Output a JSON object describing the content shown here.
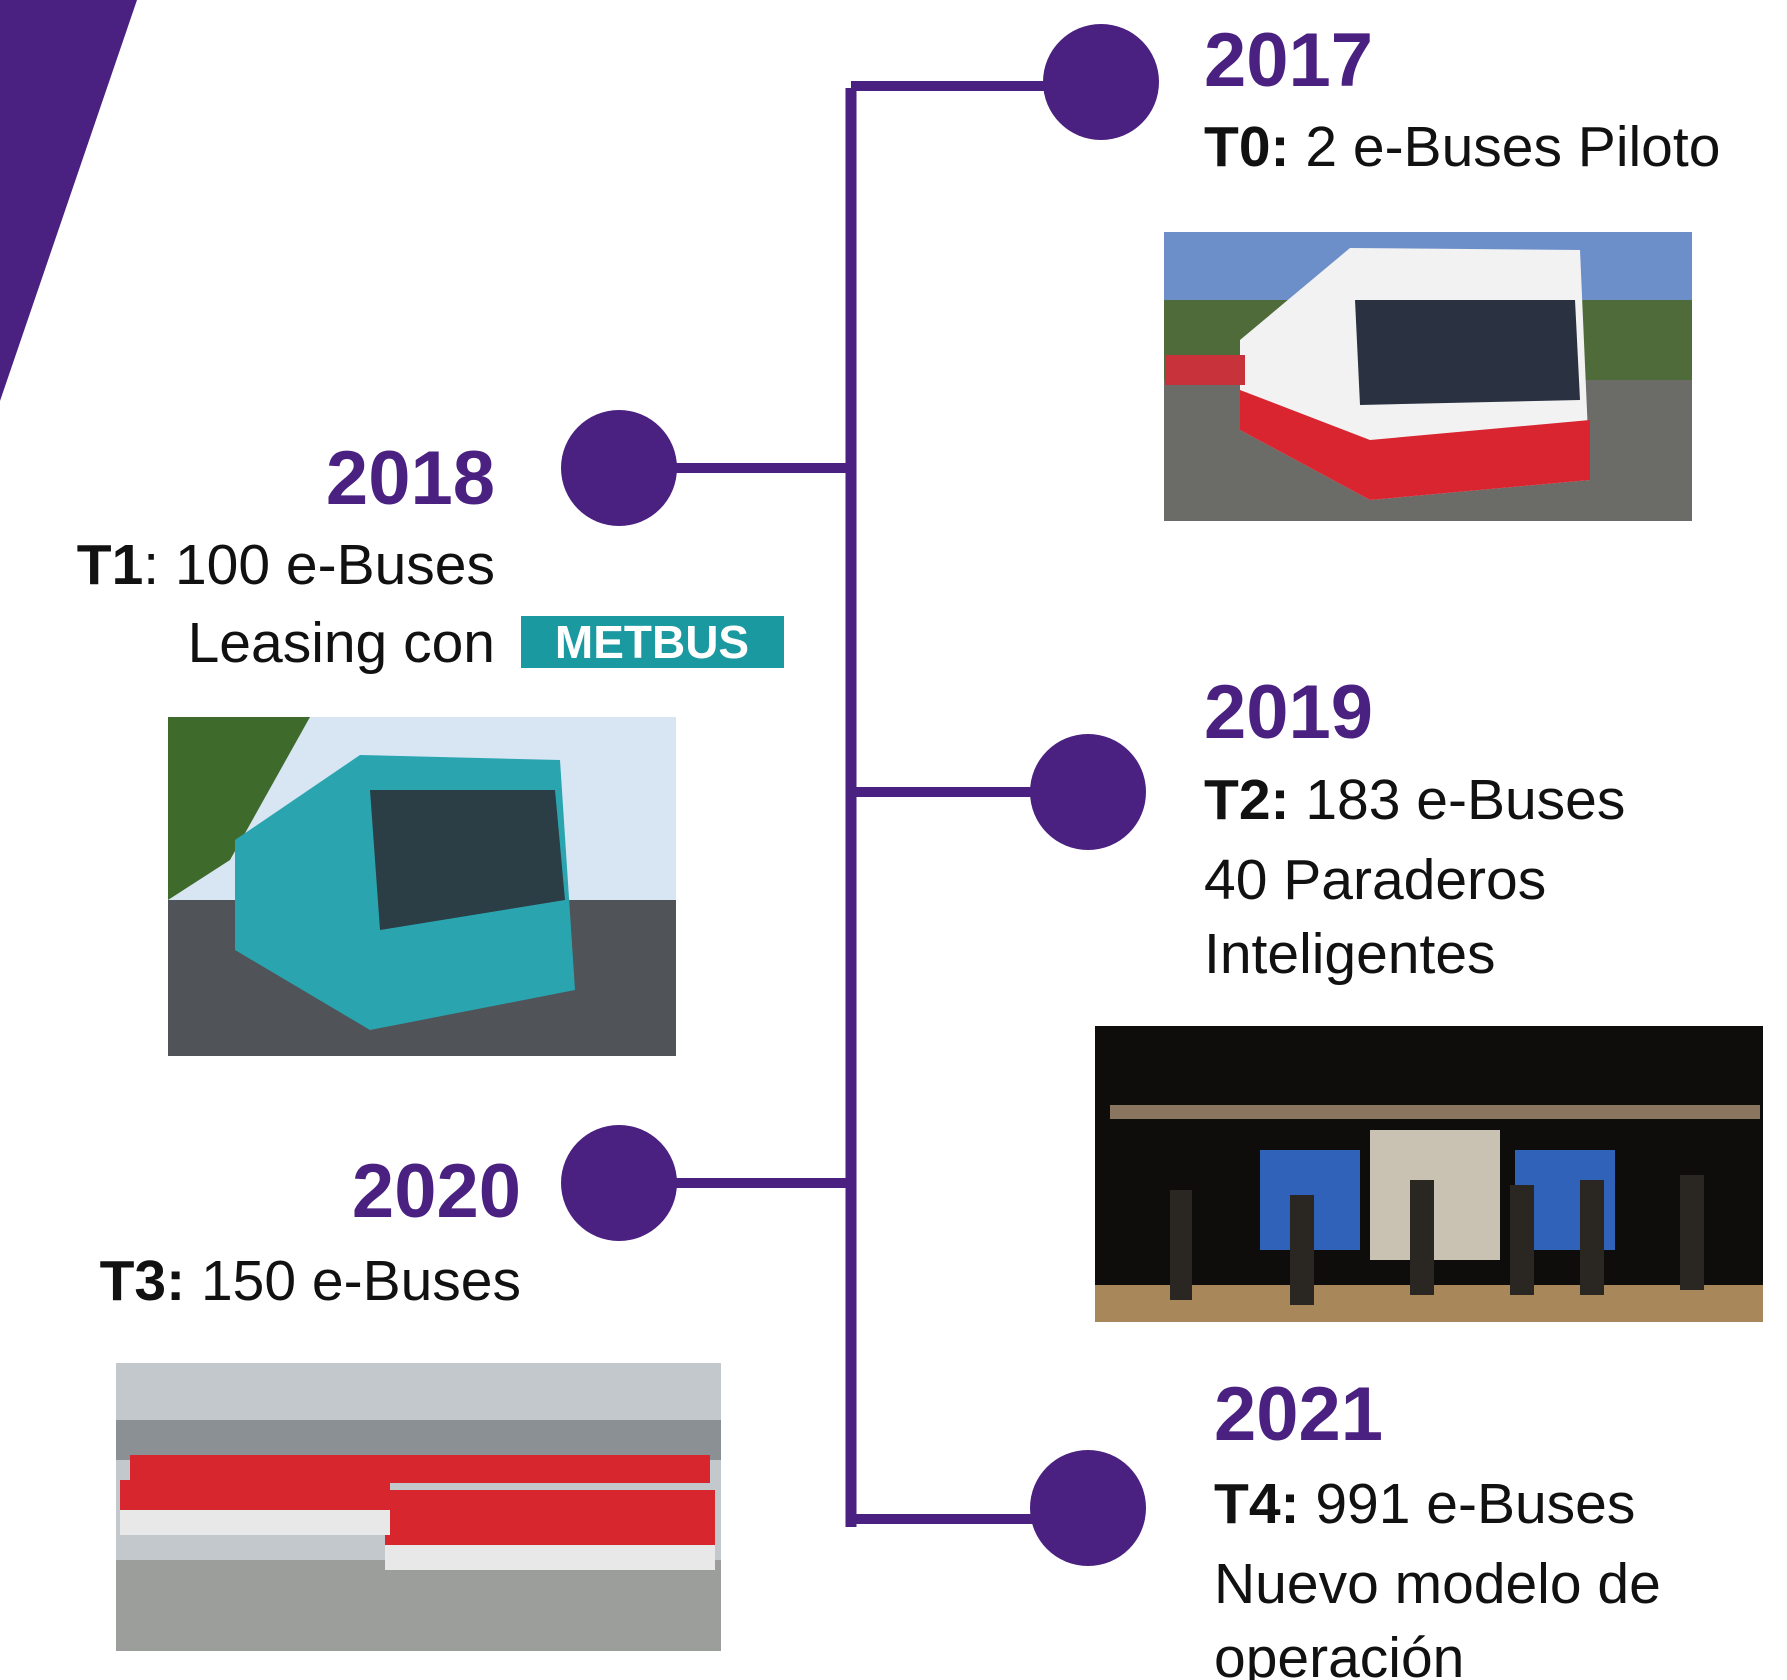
{
  "events": [
    {
      "year": "2017",
      "code": "T0:",
      "lines": [
        "2 e-Buses Piloto"
      ]
    },
    {
      "year": "2018",
      "code": "T1",
      "lines": [
        ": 100 e-Buses",
        "Leasing con"
      ],
      "logo": "METBUS"
    },
    {
      "year": "2019",
      "code": "T2:",
      "lines": [
        "183 e-Buses",
        "40 Paraderos",
        "Inteligentes"
      ]
    },
    {
      "year": "2020",
      "code": "T3:",
      "lines": [
        "150 e-Buses"
      ]
    },
    {
      "year": "2021",
      "code": "T4:",
      "lines": [
        "991 e-Buses",
        "Nuevo modelo de",
        "operación"
      ]
    }
  ]
}
